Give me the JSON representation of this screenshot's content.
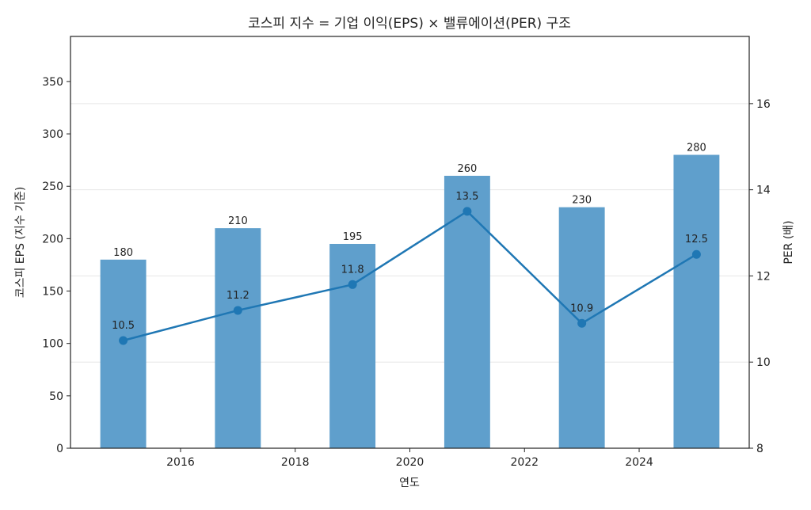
{
  "chart_data": {
    "type": "bar+line",
    "title": "코스피 지수 = 기업 이익(EPS) × 밸류에이션(PER) 구조",
    "xlabel": "연도",
    "ylabel_left": "코스피 EPS (지수 기준)",
    "ylabel_right": "PER (배)",
    "x": [
      2015,
      2017,
      2019,
      2021,
      2023,
      2025
    ],
    "x_ticks": [
      "2016",
      "2018",
      "2020",
      "2022",
      "2024"
    ],
    "xlim": [
      2014.08,
      2025.92
    ],
    "series": [
      {
        "kind": "bar",
        "axis": "left",
        "values": [
          180,
          210,
          195,
          260,
          230,
          280
        ],
        "labels": [
          "180",
          "210",
          "195",
          "260",
          "230",
          "280"
        ],
        "color": "#5f9fcc"
      },
      {
        "kind": "line",
        "axis": "right",
        "values": [
          10.5,
          11.2,
          11.8,
          13.5,
          10.9,
          12.5
        ],
        "labels": [
          "10.5",
          "11.2",
          "11.8",
          "13.5",
          "10.9",
          "12.5"
        ],
        "color": "#1f77b4"
      }
    ],
    "ylim_left": [
      0,
      393
    ],
    "yticks_left": [
      "0",
      "50",
      "100",
      "150",
      "200",
      "250",
      "300",
      "350"
    ],
    "ylim_right": [
      8,
      17.56
    ],
    "yticks_right": [
      "8",
      "10",
      "12",
      "14",
      "16"
    ],
    "grid": "horizontal, right axis ticks"
  }
}
